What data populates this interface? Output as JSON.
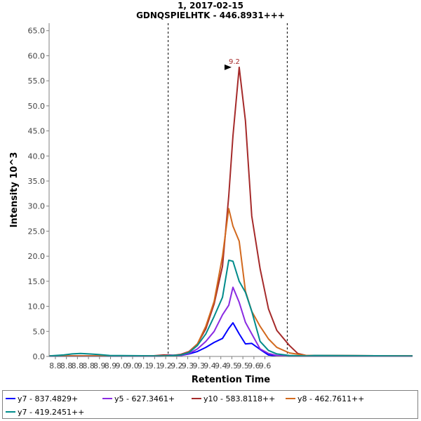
{
  "header": {
    "title": "1, 2017-02-15",
    "subtitle": "GDNQSPIELHTK - 446.8931+++"
  },
  "chart_data": {
    "type": "line",
    "xlabel": "Retention Time",
    "ylabel": "Intensity 10^3",
    "xlim": [
      8.785,
      9.655
    ],
    "ylim": [
      0,
      66.5
    ],
    "x_ticks": [
      "8.8",
      "8.8",
      "8.8",
      "8.8",
      "8.9",
      "8.9",
      "9.0",
      "9.0",
      "9.1",
      "9.1",
      "9.2",
      "9.2",
      "9.3",
      "9.3",
      "9.4",
      "9.4",
      "9.5",
      "9.5",
      "9.6",
      "9.6"
    ],
    "y_ticks": [
      "0.0",
      "5.0",
      "10.0",
      "15.0",
      "20.0",
      "25.0",
      "30.0",
      "35.0",
      "40.0",
      "45.0",
      "50.0",
      "55.0",
      "60.0",
      "65.0"
    ],
    "boundaries": [
      9.07,
      9.355
    ],
    "peak_annotation": {
      "x": 9.225,
      "y": 57.7,
      "label": "9.2"
    },
    "series": [
      {
        "name": "y7 - 837.4829+",
        "color": "#0000ff",
        "x": [
          8.785,
          9.05,
          9.08,
          9.1,
          9.12,
          9.14,
          9.16,
          9.18,
          9.2,
          9.215,
          9.225,
          9.24,
          9.255,
          9.27,
          9.29,
          9.31,
          9.33,
          9.36,
          9.4,
          9.655
        ],
        "y": [
          0.05,
          0.05,
          0.1,
          0.2,
          0.5,
          1.0,
          1.8,
          2.8,
          3.6,
          5.6,
          6.7,
          4.5,
          2.5,
          2.6,
          1.4,
          0.3,
          0.1,
          0.05,
          0.05,
          0.05
        ]
      },
      {
        "name": "y5 - 627.3461+",
        "color": "#8a2be2",
        "x": [
          8.785,
          9.04,
          9.07,
          9.1,
          9.12,
          9.14,
          9.16,
          9.18,
          9.2,
          9.215,
          9.225,
          9.24,
          9.255,
          9.27,
          9.29,
          9.31,
          9.33,
          9.36,
          9.4,
          9.655
        ],
        "y": [
          0.1,
          0.1,
          0.3,
          0.2,
          0.6,
          1.5,
          3.0,
          5.0,
          8.3,
          10.2,
          13.8,
          10.8,
          6.8,
          4.5,
          1.5,
          0.6,
          0.2,
          0.1,
          0.1,
          0.1
        ]
      },
      {
        "name": "y10 - 583.8118++",
        "color": "#a52a2a",
        "x": [
          8.785,
          9.03,
          9.06,
          9.08,
          9.1,
          9.12,
          9.14,
          9.16,
          9.18,
          9.2,
          9.215,
          9.225,
          9.24,
          9.255,
          9.27,
          9.29,
          9.31,
          9.33,
          9.36,
          9.38,
          9.4,
          9.655
        ],
        "y": [
          0.1,
          0.1,
          0.3,
          0.2,
          0.4,
          1.0,
          2.5,
          5.5,
          10.5,
          18.0,
          32.0,
          44.0,
          57.7,
          47.0,
          28.0,
          17.5,
          9.5,
          5.2,
          2.2,
          0.6,
          0.2,
          0.1
        ]
      },
      {
        "name": "y8 - 462.7611++",
        "color": "#d2691e",
        "x": [
          8.785,
          9.05,
          9.08,
          9.1,
          9.12,
          9.14,
          9.16,
          9.18,
          9.2,
          9.215,
          9.225,
          9.24,
          9.255,
          9.27,
          9.29,
          9.31,
          9.33,
          9.36,
          9.4,
          9.655
        ],
        "y": [
          0.1,
          0.1,
          0.2,
          0.3,
          0.9,
          2.5,
          6.0,
          11.0,
          20.0,
          29.5,
          26.0,
          23.0,
          13.0,
          9.0,
          6.0,
          3.5,
          1.8,
          0.7,
          0.2,
          0.1
        ]
      },
      {
        "name": "y7 - 419.2451++",
        "color": "#008b8b",
        "x": [
          8.785,
          8.82,
          8.84,
          8.86,
          8.88,
          8.9,
          8.93,
          9.06,
          9.08,
          9.1,
          9.12,
          9.14,
          9.16,
          9.18,
          9.2,
          9.215,
          9.225,
          9.24,
          9.255,
          9.27,
          9.29,
          9.31,
          9.33,
          9.36,
          9.4,
          9.42,
          9.655
        ],
        "y": [
          0.1,
          0.3,
          0.5,
          0.6,
          0.5,
          0.4,
          0.2,
          0.1,
          0.2,
          0.3,
          0.8,
          2.2,
          4.5,
          8.0,
          11.8,
          19.2,
          19.0,
          15.0,
          12.8,
          9.0,
          3.0,
          1.2,
          0.5,
          0.2,
          0.1,
          0.2,
          0.1
        ]
      }
    ]
  }
}
